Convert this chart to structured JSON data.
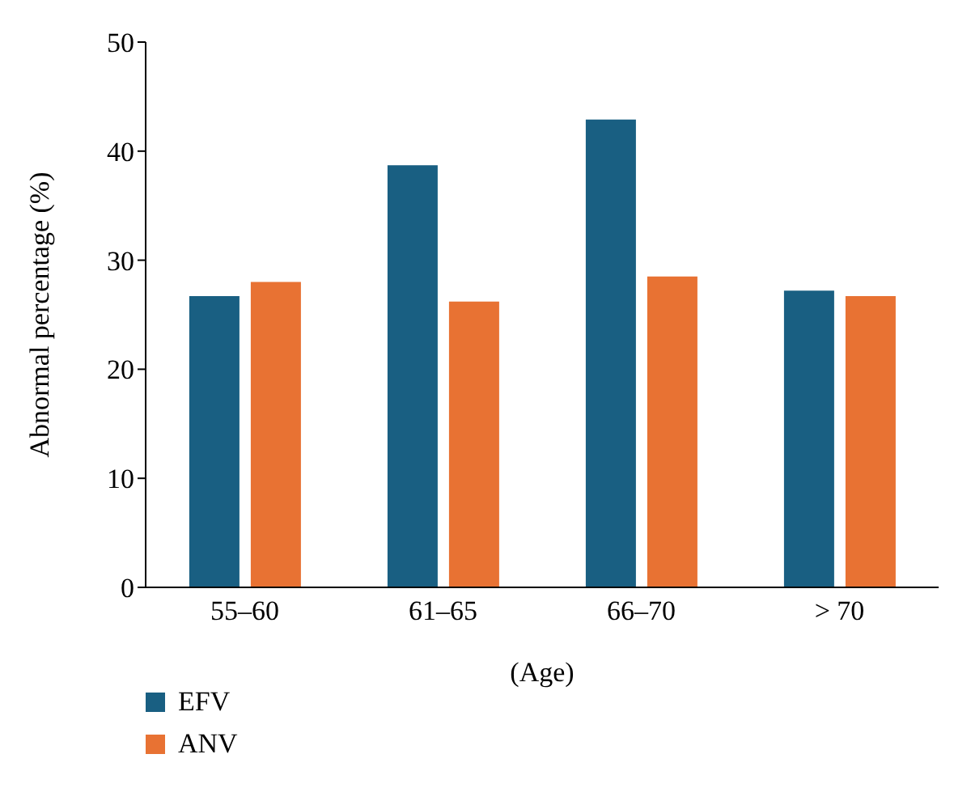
{
  "chart_data": {
    "type": "bar",
    "xlabel": "(Age)",
    "ylabel": "Abnormal percentage (%)",
    "categories": [
      "55–60",
      "61–65",
      "66–70",
      "> 70"
    ],
    "series": [
      {
        "name": "EFV",
        "color": "#195f82",
        "values": [
          26.7,
          38.7,
          42.9,
          27.2
        ]
      },
      {
        "name": "ANV",
        "color": "#e87233",
        "values": [
          28.0,
          26.2,
          28.5,
          26.7
        ]
      }
    ],
    "ylim": [
      0,
      50
    ],
    "yticks": [
      0,
      10,
      20,
      30,
      40,
      50
    ],
    "grid": false,
    "legend": "bottom left"
  }
}
